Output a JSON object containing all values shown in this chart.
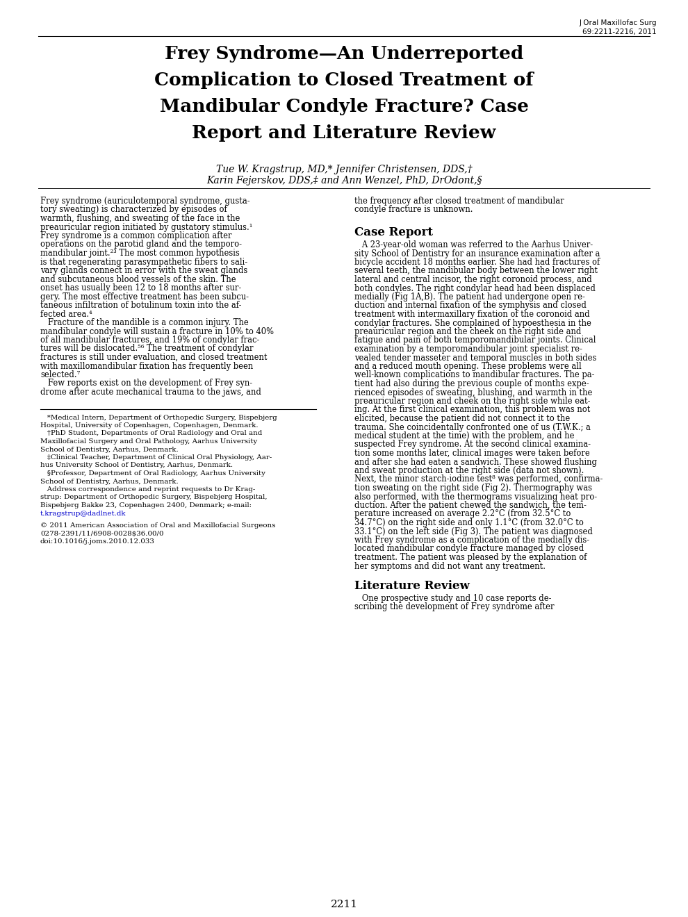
{
  "journal_info": "J Oral Maxillofac Surg\n69:2211-2216, 2011",
  "title_lines": [
    "Frey Syndrome—An Underreported",
    "Complication to Closed Treatment of",
    "Mandibular Condyle Fracture? Case",
    "Report and Literature Review"
  ],
  "authors_line1": "Tue W. Kragstrup, MD,* Jennifer Christensen, DDS,†",
  "authors_line2": "Karin Fejerskov, DDS,‡ and Ann Wenzel, PhD, DrOdont,§",
  "left_col_lines": [
    "Frey syndrome (auriculotemporal syndrome, gusta-",
    "tory sweating) is characterized by episodes of",
    "warmth, flushing, and sweating of the face in the",
    "preauricular region initiated by gustatory stimulus.¹",
    "Frey syndrome is a common complication after",
    "operations on the parotid gland and the temporo-",
    "mandibular joint.²³ The most common hypothesis",
    "is that regenerating parasympathetic fibers to sali-",
    "vary glands connect in error with the sweat glands",
    "and subcutaneous blood vessels of the skin. The",
    "onset has usually been 12 to 18 months after sur-",
    "gery. The most effective treatment has been subcu-",
    "taneous infiltration of botulinum toxin into the af-",
    "fected area.⁴",
    "   Fracture of the mandible is a common injury. The",
    "mandibular condyle will sustain a fracture in 10% to 40%",
    "of all mandibular fractures, and 19% of condylar frac-",
    "tures will be dislocated.⁵⁶ The treatment of condylar",
    "fractures is still under evaluation, and closed treatment",
    "with maxillomandibular fixation has frequently been",
    "selected.⁷",
    "   Few reports exist on the development of Frey syn-",
    "drome after acute mechanical trauma to the jaws, and"
  ],
  "right_intro_lines": [
    "the frequency after closed treatment of mandibular",
    "condyle fracture is unknown."
  ],
  "case_report_heading": "Case Report",
  "case_report_lines": [
    "   A 23-year-old woman was referred to the Aarhus Univer-",
    "sity School of Dentistry for an insurance examination after a",
    "bicycle accident 18 months earlier. She had had fractures of",
    "several teeth, the mandibular body between the lower right",
    "lateral and central incisor, the right coronoid process, and",
    "both condyles. The right condylar head had been displaced",
    "medially (Fig 1A,B). The patient had undergone open re-",
    "duction and internal fixation of the symphysis and closed",
    "treatment with intermaxillary fixation of the coronoid and",
    "condylar fractures. She complained of hypoesthesia in the",
    "preauricular region and the cheek on the right side and",
    "fatigue and pain of both temporomandibular joints. Clinical",
    "examination by a temporomandibular joint specialist re-",
    "vealed tender masseter and temporal muscles in both sides",
    "and a reduced mouth opening. These problems were all",
    "well-known complications to mandibular fractures. The pa-",
    "tient had also during the previous couple of months expe-",
    "rienced episodes of sweating, blushing, and warmth in the",
    "preauricular region and cheek on the right side while eat-",
    "ing. At the first clinical examination, this problem was not",
    "elicited, because the patient did not connect it to the",
    "trauma. She coincidentally confronted one of us (T.W.K.; a",
    "medical student at the time) with the problem, and he",
    "suspected Frey syndrome. At the second clinical examina-",
    "tion some months later, clinical images were taken before",
    "and after she had eaten a sandwich. These showed flushing",
    "and sweat production at the right side (data not shown).",
    "Next, the minor starch-iodine test⁸ was performed, confirma-",
    "tion sweating on the right side (Fig 2). Thermography was",
    "also performed, with the thermograms visualizing heat pro-",
    "duction. After the patient chewed the sandwich, the tem-",
    "perature increased on average 2.2°C (from 32.5°C to",
    "34.7°C) on the right side and only 1.1°C (from 32.0°C to",
    "33.1°C) on the left side (Fig 3). The patient was diagnosed",
    "with Frey syndrome as a complication of the medially dis-",
    "located mandibular condyle fracture managed by closed",
    "treatment. The patient was pleased by the explanation of",
    "her symptoms and did not want any treatment."
  ],
  "lit_review_heading": "Literature Review",
  "lit_review_lines": [
    "   One prospective study and 10 case reports de-",
    "scribing the development of Frey syndrome after"
  ],
  "footnote_lines": [
    "   *Medical Intern, Department of Orthopedic Surgery, Bispebjerg",
    "Hospital, University of Copenhagen, Copenhagen, Denmark.",
    "   †PhD Student, Departments of Oral Radiology and Oral and",
    "Maxillofacial Surgery and Oral Pathology, Aarhus University",
    "School of Dentistry, Aarhus, Denmark.",
    "   ‡Clinical Teacher, Department of Clinical Oral Physiology, Aar-",
    "hus University School of Dentistry, Aarhus, Denmark.",
    "   §Professor, Department of Oral Radiology, Aarhus University",
    "School of Dentistry, Aarhus, Denmark.",
    "   Address correspondence and reprint requests to Dr Krag-",
    "strup: Department of Orthopedic Surgery, Bispebjerg Hospital,",
    "Bispebjerg Bakke 23, Copenhagen 2400, Denmark; e-mail:",
    "t.kragstrup@dadlnet.dk"
  ],
  "copyright_lines": [
    "© 2011 American Association of Oral and Maxillofacial Surgeons",
    "0278-2391/11/6908-0028$36.00/0",
    "doi:10.1016/j.joms.2010.12.033"
  ],
  "page_number": "2211",
  "bg_color": "#ffffff",
  "text_color": "#000000",
  "blue_link_color": "#0000cc",
  "title_color": "#000000",
  "divider_color": "#000000"
}
